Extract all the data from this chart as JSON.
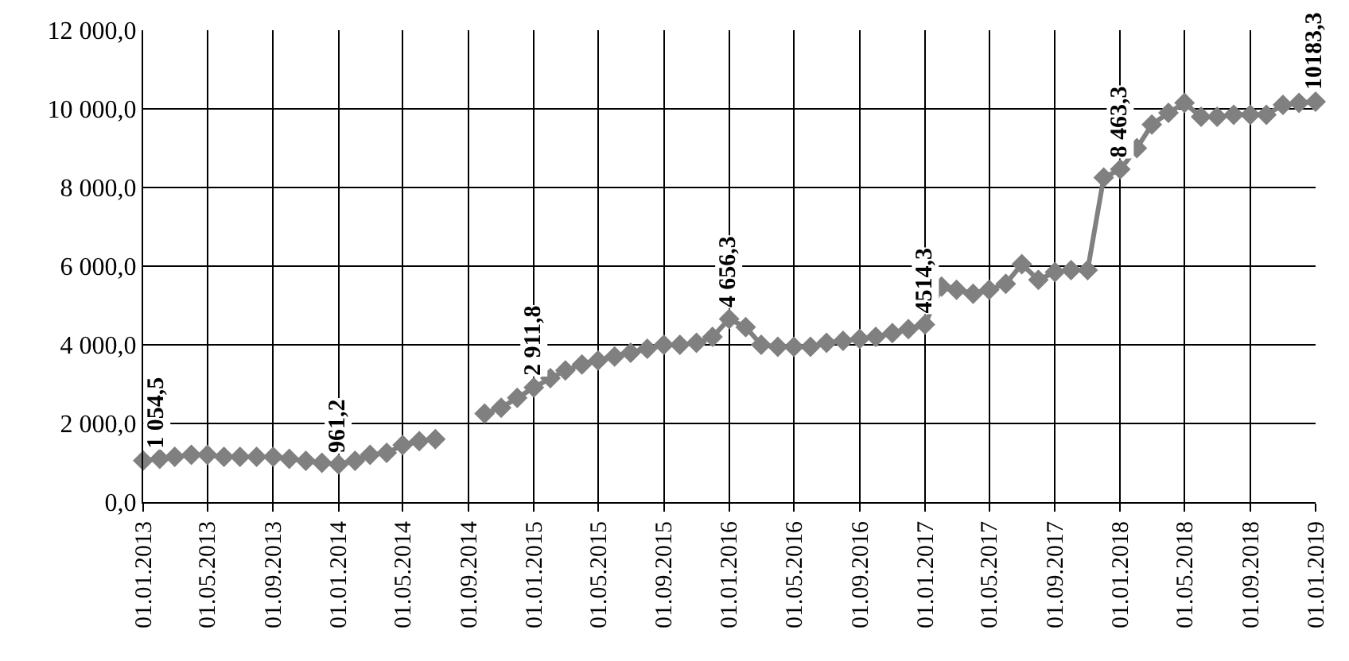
{
  "chart_data": {
    "type": "line",
    "x": [
      "2013-01",
      "2013-02",
      "2013-03",
      "2013-04",
      "2013-05",
      "2013-06",
      "2013-07",
      "2013-08",
      "2013-09",
      "2013-10",
      "2013-11",
      "2013-12",
      "2014-01",
      "2014-02",
      "2014-03",
      "2014-04",
      "2014-05",
      "2014-06",
      "2014-07",
      "2014-08",
      "2014-09",
      "2014-10",
      "2014-11",
      "2014-12",
      "2015-01",
      "2015-02",
      "2015-03",
      "2015-04",
      "2015-05",
      "2015-06",
      "2015-07",
      "2015-08",
      "2015-09",
      "2015-10",
      "2015-11",
      "2015-12",
      "2016-01",
      "2016-02",
      "2016-03",
      "2016-04",
      "2016-05",
      "2016-06",
      "2016-07",
      "2016-08",
      "2016-09",
      "2016-10",
      "2016-11",
      "2016-12",
      "2017-01",
      "2017-02",
      "2017-03",
      "2017-04",
      "2017-05",
      "2017-06",
      "2017-07",
      "2017-08",
      "2017-09",
      "2017-10",
      "2017-11",
      "2017-12",
      "2018-01",
      "2018-02",
      "2018-03",
      "2018-04",
      "2018-05",
      "2018-06",
      "2018-07",
      "2018-08",
      "2018-09",
      "2018-10",
      "2018-11",
      "2018-12",
      "2019-01"
    ],
    "series": [
      {
        "color": "#808080",
        "values": [
          1054.5,
          1100,
          1150,
          1200,
          1200,
          1150,
          1150,
          1150,
          1150,
          1100,
          1050,
          1000,
          961.2,
          1050,
          1200,
          1250,
          1450,
          1550,
          1600,
          null,
          null,
          2250,
          2400,
          2650,
          2911.8,
          3150,
          3350,
          3500,
          3600,
          3700,
          3800,
          3900,
          4000,
          4000,
          4050,
          4200,
          4656.3,
          4450,
          4000,
          3950,
          3950,
          3950,
          4050,
          4100,
          4150,
          4200,
          4300,
          4400,
          4514.3,
          5480,
          5400,
          5300,
          5400,
          5550,
          6050,
          5650,
          5850,
          5900,
          5900,
          8250,
          8463.3,
          9000,
          9600,
          9900,
          10150,
          9800,
          9800,
          9850,
          9850,
          9850,
          10100,
          10150,
          10183.3
        ],
        "value_labels": [
          "1 054,5",
          null,
          null,
          null,
          null,
          null,
          null,
          null,
          null,
          null,
          null,
          null,
          "961,2",
          null,
          null,
          null,
          null,
          null,
          null,
          null,
          null,
          null,
          null,
          null,
          "2 911,8",
          null,
          null,
          null,
          null,
          null,
          null,
          null,
          null,
          null,
          null,
          null,
          "4 656,3",
          null,
          null,
          null,
          null,
          null,
          null,
          null,
          null,
          null,
          null,
          null,
          "4514,3",
          null,
          null,
          null,
          null,
          null,
          null,
          null,
          null,
          null,
          null,
          null,
          "8 463,3",
          null,
          null,
          null,
          null,
          null,
          null,
          null,
          null,
          null,
          null,
          null,
          "10183,3"
        ]
      }
    ],
    "xlim": [
      "2013-01-01",
      "2019-01-01"
    ],
    "xticks": [
      {
        "value": "2013-01-01",
        "label": "01.01.2013"
      },
      {
        "value": "2013-05-01",
        "label": "01.05.2013"
      },
      {
        "value": "2013-09-01",
        "label": "01.09.2013"
      },
      {
        "value": "2014-01-01",
        "label": "01.01.2014"
      },
      {
        "value": "2014-05-01",
        "label": "01.05.2014"
      },
      {
        "value": "2014-09-01",
        "label": "01.09.2014"
      },
      {
        "value": "2015-01-01",
        "label": "01.01.2015"
      },
      {
        "value": "2015-05-01",
        "label": "01.05.2015"
      },
      {
        "value": "2015-09-01",
        "label": "01.09.2015"
      },
      {
        "value": "2016-01-01",
        "label": "01.01.2016"
      },
      {
        "value": "2016-05-01",
        "label": "01.05.2016"
      },
      {
        "value": "2016-09-01",
        "label": "01.09.2016"
      },
      {
        "value": "2017-01-01",
        "label": "01.01.2017"
      },
      {
        "value": "2017-05-01",
        "label": "01.05.2017"
      },
      {
        "value": "2017-09-01",
        "label": "01.09.2017"
      },
      {
        "value": "2018-01-01",
        "label": "01.01.2018"
      },
      {
        "value": "2018-05-01",
        "label": "01.05.2018"
      },
      {
        "value": "2018-09-01",
        "label": "01.09.2018"
      },
      {
        "value": "2019-01-01",
        "label": "01.01.2019"
      }
    ],
    "ylim": [
      0,
      12000
    ],
    "yticks": [
      {
        "value": 0,
        "label": "0,0"
      },
      {
        "value": 2000,
        "label": "2 000,0"
      },
      {
        "value": 4000,
        "label": "4 000,0"
      },
      {
        "value": 6000,
        "label": "6 000,0"
      },
      {
        "value": 8000,
        "label": "8 000,0"
      },
      {
        "value": 10000,
        "label": "10 000,0"
      },
      {
        "value": 12000,
        "label": "12 000,0"
      }
    ],
    "grid": true,
    "marker": "diamond",
    "line_style": "solid"
  }
}
